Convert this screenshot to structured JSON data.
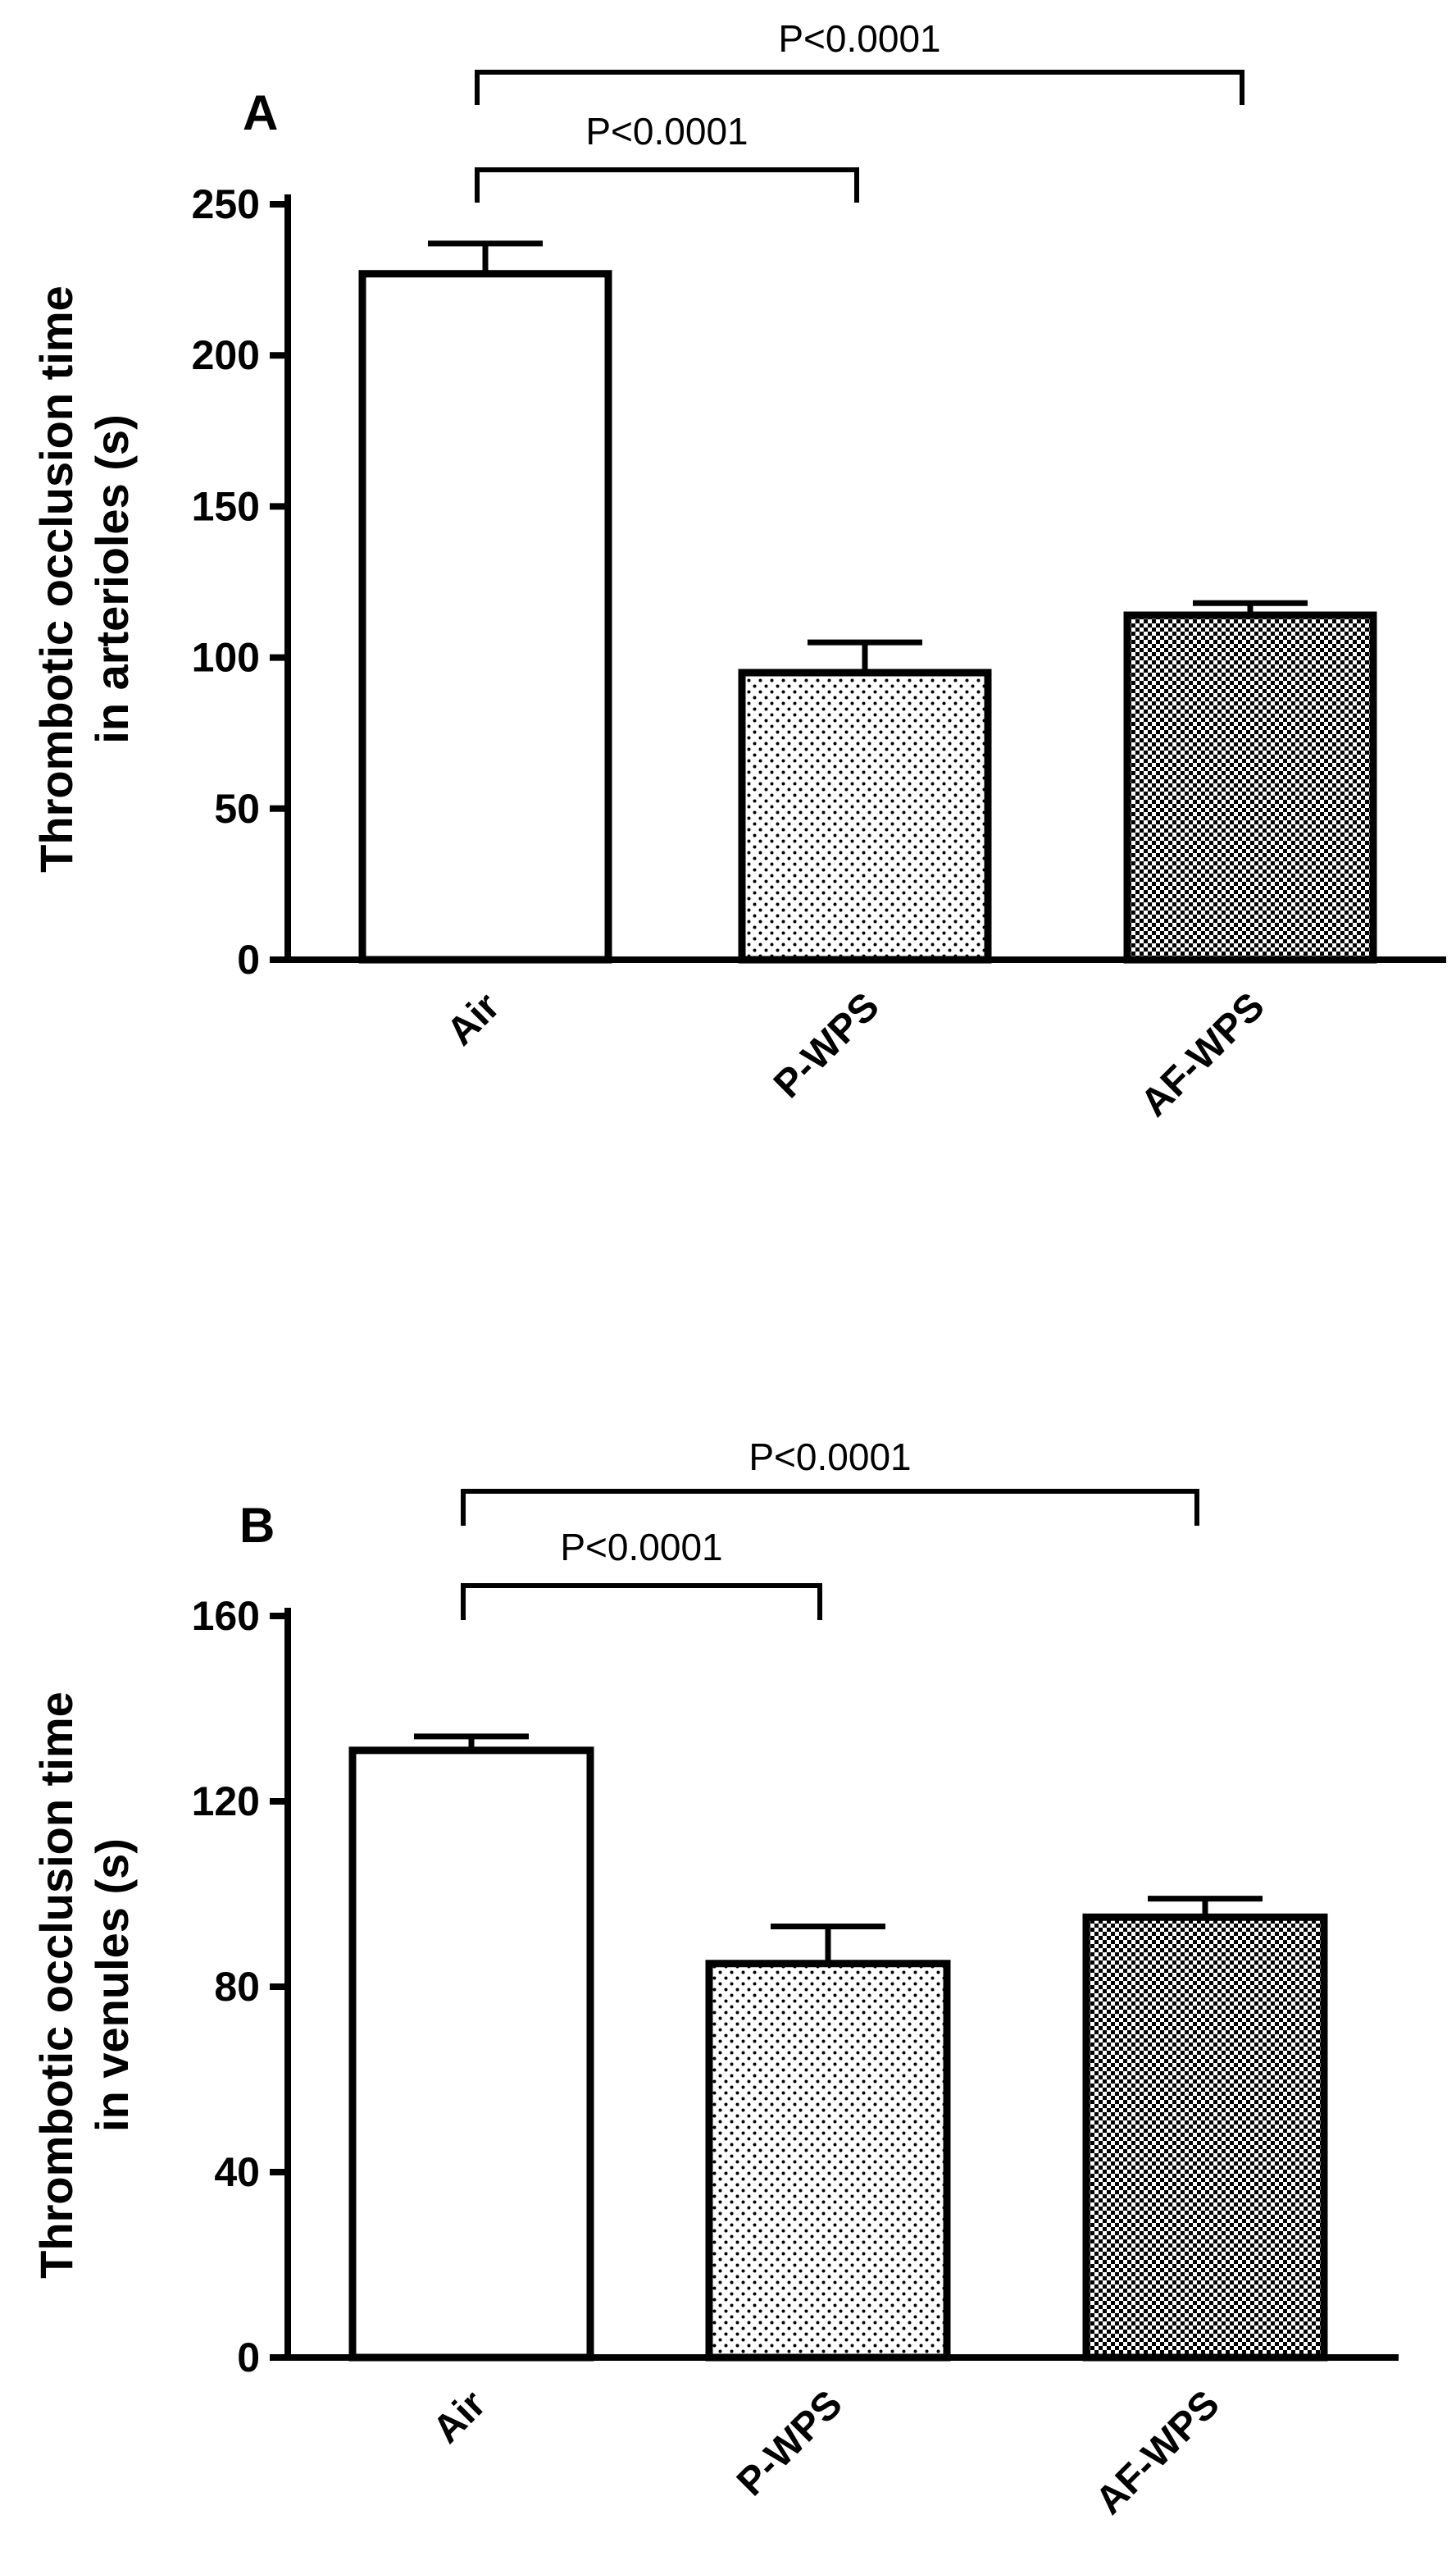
{
  "chart_data": [
    {
      "type": "bar",
      "panel_label": "A",
      "categories": [
        "Air",
        "P-WPS",
        "AF-WPS"
      ],
      "values": [
        227,
        95,
        114
      ],
      "errors": [
        10,
        10,
        4
      ],
      "patterns": [
        "none",
        "sparse-dots",
        "dense-checker"
      ],
      "ylabel_lines": [
        "Thrombotic occlusion time",
        "in arterioles (s)"
      ],
      "ylim": [
        0,
        250
      ],
      "yticks": [
        0,
        50,
        100,
        150,
        200,
        250
      ],
      "comparisons": [
        {
          "from": 0,
          "to": 1,
          "label": "P<0.0001"
        },
        {
          "from": 0,
          "to": 2,
          "label": "P<0.0001"
        }
      ]
    },
    {
      "type": "bar",
      "panel_label": "B",
      "categories": [
        "Air",
        "P-WPS",
        "AF-WPS"
      ],
      "values": [
        131,
        85,
        95
      ],
      "errors": [
        3,
        8,
        4
      ],
      "patterns": [
        "none",
        "sparse-dots",
        "dense-checker"
      ],
      "ylabel_lines": [
        "Thrombotic occlusion time",
        "in venules (s)"
      ],
      "ylim": [
        0,
        160
      ],
      "yticks": [
        0,
        40,
        80,
        120,
        160
      ],
      "comparisons": [
        {
          "from": 0,
          "to": 1,
          "label": "P<0.0001"
        },
        {
          "from": 0,
          "to": 2,
          "label": "P<0.0001"
        }
      ]
    }
  ]
}
